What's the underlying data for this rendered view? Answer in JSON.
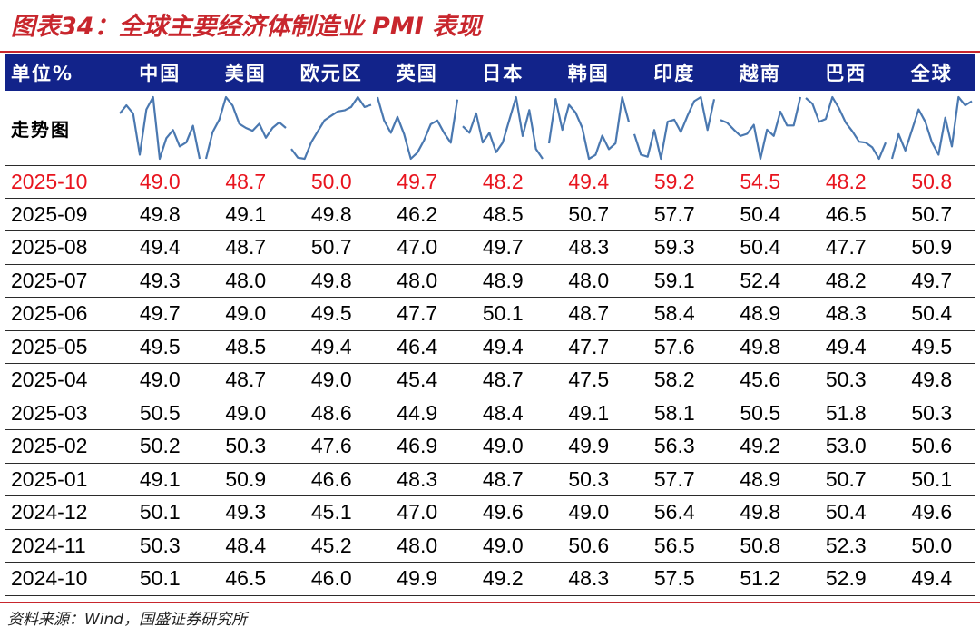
{
  "title": "图表34：全球主要经济体制造业 PMI 表现",
  "table": {
    "header_first": "单位%",
    "columns": [
      "中国",
      "美国",
      "欧元区",
      "英国",
      "日本",
      "韩国",
      "印度",
      "越南",
      "巴西",
      "全球"
    ],
    "sparkline_label": "走势图",
    "sparkline_color": "#4a78b0",
    "highlight_color": "#e8141e",
    "header_bg": "#12238a"
  },
  "chart_data": {
    "type": "table",
    "row_labels": [
      "2025-10",
      "2025-09",
      "2025-08",
      "2025-07",
      "2025-06",
      "2025-05",
      "2025-04",
      "2025-03",
      "2025-02",
      "2025-01",
      "2024-12",
      "2024-11",
      "2024-10"
    ],
    "columns": [
      "中国",
      "美国",
      "欧元区",
      "英国",
      "日本",
      "韩国",
      "印度",
      "越南",
      "巴西",
      "全球"
    ],
    "values": [
      [
        49.0,
        48.7,
        50.0,
        49.7,
        48.2,
        49.4,
        59.2,
        54.5,
        48.2,
        50.8
      ],
      [
        49.8,
        49.1,
        49.8,
        46.2,
        48.5,
        50.7,
        57.7,
        50.4,
        46.5,
        50.7
      ],
      [
        49.4,
        48.7,
        50.7,
        47.0,
        49.7,
        48.3,
        59.3,
        50.4,
        47.7,
        50.9
      ],
      [
        49.3,
        48.0,
        49.8,
        48.0,
        48.9,
        48.0,
        59.1,
        52.4,
        48.2,
        49.7
      ],
      [
        49.7,
        49.0,
        49.5,
        47.7,
        50.1,
        48.7,
        58.4,
        48.9,
        48.3,
        50.4
      ],
      [
        49.5,
        48.5,
        49.4,
        46.4,
        49.4,
        47.7,
        57.6,
        49.8,
        49.4,
        49.5
      ],
      [
        49.0,
        48.7,
        49.0,
        45.4,
        48.7,
        47.5,
        58.2,
        45.6,
        50.3,
        49.8
      ],
      [
        50.5,
        49.0,
        48.6,
        44.9,
        48.4,
        49.1,
        58.1,
        50.5,
        51.8,
        50.3
      ],
      [
        50.2,
        50.3,
        47.6,
        46.9,
        49.0,
        49.9,
        56.3,
        49.2,
        53.0,
        50.6
      ],
      [
        49.1,
        50.9,
        46.6,
        48.3,
        48.7,
        50.3,
        57.7,
        48.9,
        50.7,
        50.1
      ],
      [
        50.1,
        49.3,
        45.1,
        47.0,
        49.6,
        49.0,
        56.4,
        49.8,
        50.4,
        49.6
      ],
      [
        50.3,
        48.4,
        45.2,
        48.0,
        49.0,
        50.6,
        56.5,
        50.8,
        52.3,
        50.0
      ],
      [
        50.1,
        46.5,
        46.0,
        49.9,
        49.2,
        48.3,
        57.5,
        51.2,
        52.9,
        49.4
      ]
    ],
    "highlight_row": "2025-10"
  },
  "source": "资料来源：Wind，国盛证券研究所"
}
